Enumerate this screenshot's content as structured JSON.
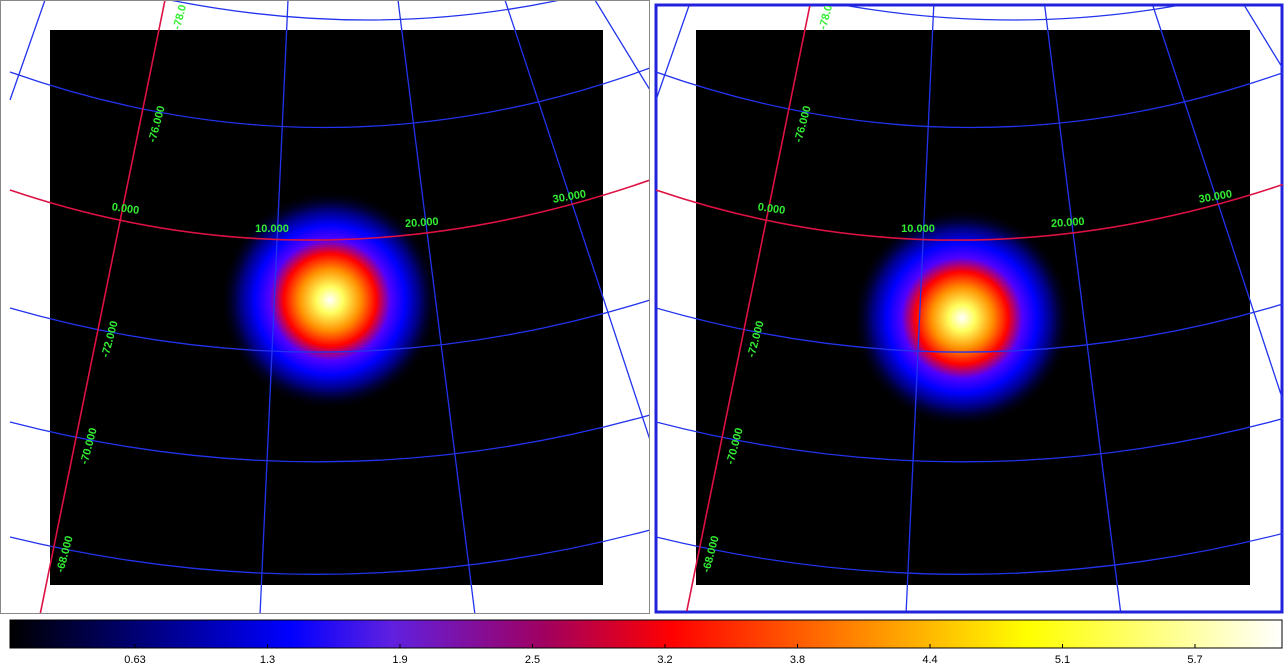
{
  "frames": [
    {
      "labels": [
        "-78.0",
        "-76.000",
        "0.000",
        "10.000",
        "20.000",
        "30.000",
        "-72.000",
        "-70.000",
        "-68.000"
      ]
    },
    {
      "labels": [
        "-78.0",
        "-76.000",
        "0.000",
        "10.000",
        "20.000",
        "30.000",
        "-72.000",
        "-70.000",
        "-68.000"
      ]
    }
  ],
  "colorbar": {
    "ticks": [
      "0.63",
      "1.3",
      "1.9",
      "2.5",
      "3.2",
      "3.8",
      "4.4",
      "5.1",
      "5.7"
    ]
  }
}
